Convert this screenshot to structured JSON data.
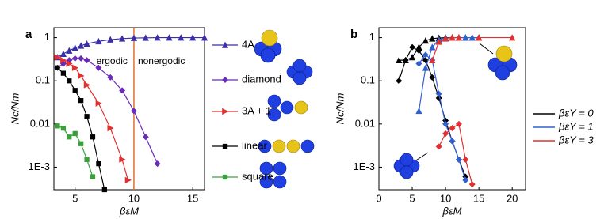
{
  "chart_data": [
    {
      "type": "line",
      "panel_label": "a",
      "y_label": "Nc/Nm",
      "x_label": "βεM",
      "log_y": true,
      "xlim": [
        3.2,
        16
      ],
      "xticks": [
        5,
        10,
        15
      ],
      "ylim": [
        0.0003,
        1.7
      ],
      "yticks": [
        {
          "value": 0.001,
          "label": "1E-3"
        },
        0.01,
        0.1,
        1
      ],
      "vline": 10,
      "vline_color": "#e07030",
      "annotations": [
        "ergodic",
        "nonergodic"
      ],
      "series": [
        {
          "name": "4A",
          "color": "#3a2ea8",
          "marker": "triangle-up",
          "x": [
            3.5,
            4,
            4.5,
            5,
            5.5,
            6,
            7,
            8,
            9,
            10,
            11,
            12,
            13,
            14,
            15,
            16
          ],
          "values": [
            0.35,
            0.42,
            0.5,
            0.58,
            0.65,
            0.72,
            0.82,
            0.9,
            0.95,
            0.98,
            0.99,
            1,
            1,
            1,
            1,
            1
          ]
        },
        {
          "name": "diamond",
          "color": "#6a2bb8",
          "marker": "diamond",
          "x": [
            3.5,
            4,
            4.5,
            5,
            5.5,
            6,
            7,
            8,
            9,
            10,
            11,
            12
          ],
          "values": [
            0.2,
            0.25,
            0.3,
            0.33,
            0.33,
            0.3,
            0.2,
            0.12,
            0.06,
            0.02,
            0.005,
            0.0012
          ]
        },
        {
          "name": "3A + 1",
          "color": "#e03030",
          "marker": "triangle-right",
          "x": [
            3.5,
            4,
            4.5,
            5,
            5.5,
            6,
            7,
            8,
            9,
            9.5
          ],
          "values": [
            0.35,
            0.3,
            0.25,
            0.2,
            0.13,
            0.08,
            0.03,
            0.008,
            0.0015,
            0.0005
          ]
        },
        {
          "name": "linear",
          "color": "#000000",
          "marker": "square",
          "x": [
            3.5,
            4,
            4.5,
            5,
            5.5,
            6,
            6.5,
            7,
            7.5
          ],
          "values": [
            0.2,
            0.15,
            0.1,
            0.06,
            0.035,
            0.015,
            0.005,
            0.0012,
            0.0003
          ]
        },
        {
          "name": "square",
          "color": "#3aa03a",
          "marker": "square",
          "x": [
            3.5,
            4,
            4.5,
            5,
            5.5,
            6,
            6.5
          ],
          "values": [
            0.009,
            0.008,
            0.005,
            0.006,
            0.0035,
            0.0015,
            0.0006
          ]
        }
      ]
    },
    {
      "type": "line",
      "panel_label": "b",
      "y_label": "Nc/Nm",
      "x_label": "βεM",
      "log_y": true,
      "xlim": [
        0,
        22
      ],
      "xticks": [
        0,
        5,
        10,
        15,
        20
      ],
      "ylim": [
        0.0003,
        1.7
      ],
      "yticks": [
        {
          "value": 0.001,
          "label": "1E-3"
        },
        0.01,
        0.1,
        1
      ],
      "x": [
        3,
        4,
        5,
        6,
        7,
        8,
        9,
        10,
        11,
        12,
        13,
        14,
        15,
        20
      ],
      "series": [
        {
          "name": "βεY = 0",
          "color": "#000000",
          "triangle": [
            0.3,
            0.3,
            0.35,
            0.6,
            0.85,
            0.95,
            0.98,
            1,
            1,
            1,
            1,
            1,
            1,
            null
          ],
          "diamond": [
            0.1,
            0.3,
            0.6,
            0.5,
            0.3,
            0.12,
            0.04,
            0.012,
            0.004,
            0.0015,
            0.0006,
            null,
            null,
            null
          ]
        },
        {
          "name": "βεY = 1",
          "color": "#3060d0",
          "triangle": [
            null,
            null,
            null,
            0.02,
            0.2,
            0.6,
            0.9,
            0.98,
            1,
            1,
            1,
            1,
            1,
            null
          ],
          "diamond": [
            null,
            null,
            null,
            0.25,
            0.4,
            0.3,
            0.05,
            0.01,
            0.004,
            0.0015,
            0.0005,
            null,
            null,
            null
          ]
        },
        {
          "name": "βεY = 3",
          "color": "#e03030",
          "triangle": [
            null,
            null,
            null,
            null,
            null,
            0.3,
            0.8,
            0.95,
            1,
            1,
            null,
            null,
            1,
            1
          ],
          "diamond": [
            null,
            null,
            null,
            null,
            null,
            null,
            0.003,
            0.006,
            0.008,
            0.01,
            0.0015,
            0.0004,
            null,
            null
          ]
        }
      ]
    }
  ]
}
